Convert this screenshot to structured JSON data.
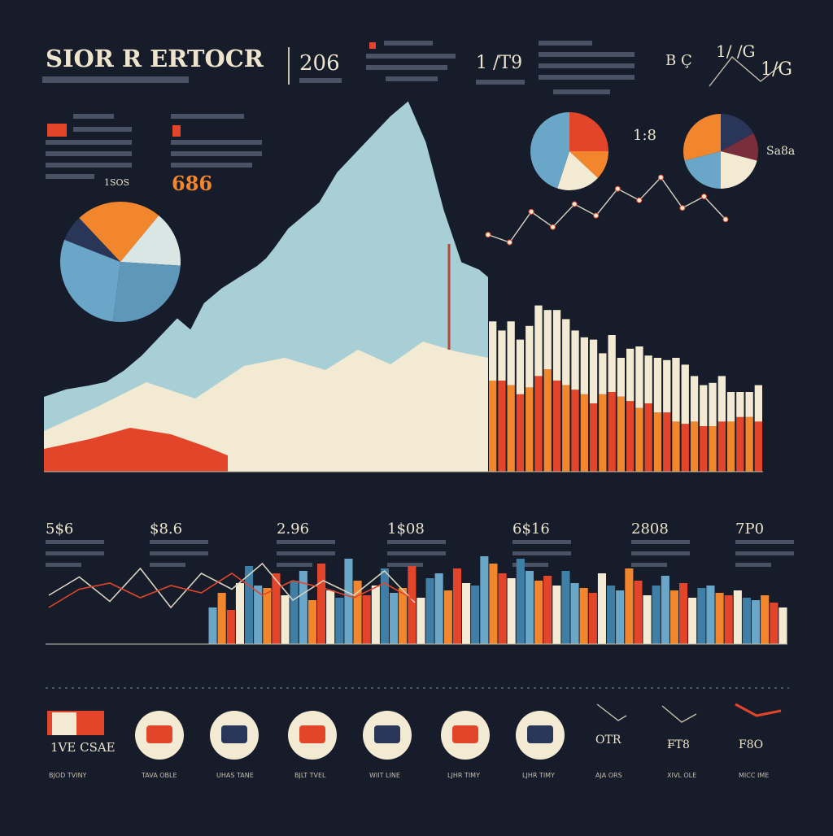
{
  "title": "SIOR R ERTOCR",
  "header_stats": [
    {
      "value": "206"
    },
    {
      "value": "1 /T9"
    },
    {
      "value": "B Ç"
    },
    {
      "value": "1/ /G"
    }
  ],
  "stat_labels": {
    "big_orange": "686",
    "right_pie_label": "Sa8a",
    "left_pie_caption": "1SOS",
    "right_pie_caption": "1:8"
  },
  "mid_stats": [
    {
      "value": "5$6"
    },
    {
      "value": "$8.6"
    },
    {
      "value": "2.96"
    },
    {
      "value": "1$08"
    },
    {
      "value": "6$16"
    },
    {
      "value": "2808"
    },
    {
      "value": "7P0"
    }
  ],
  "bottom_labels": [
    {
      "big": "1VE CSAE",
      "caption": "BJOD TVINY"
    },
    {
      "big": "",
      "caption": "TAVA OBLE"
    },
    {
      "big": "",
      "caption": "UHAS TANE"
    },
    {
      "big": "",
      "caption": "BJLT TVEL"
    },
    {
      "big": "",
      "caption": "WIIT LINE"
    },
    {
      "big": "",
      "caption": "LJHR TIMY"
    },
    {
      "big": "OTR",
      "caption": "AJA ORS"
    },
    {
      "big": "F̶T8",
      "caption": "XIVL OLE"
    },
    {
      "big": "F8O",
      "caption": "MICC IME"
    }
  ],
  "colors": {
    "bg": "#161c2a",
    "blue": "#6aa6c8",
    "light_blue": "#a9cfd6",
    "orange": "#f2862d",
    "red": "#e3452b",
    "cream": "#f2ead2",
    "navy": "#2a3657",
    "maroon": "#7a2e3b"
  },
  "chart_data": [
    {
      "type": "pie",
      "name": "pie-left",
      "values": [
        11,
        15,
        26,
        29,
        7,
        12
      ],
      "colors": [
        "#f2862d",
        "#d9e6e4",
        "#5f97b8",
        "#6aa6c8",
        "#2a3657",
        "#f2862d"
      ]
    },
    {
      "type": "pie",
      "name": "pie-top-middle",
      "values": [
        25,
        12,
        18,
        45
      ],
      "colors": [
        "#e3452b",
        "#f2862d",
        "#f2ead2",
        "#6aa6c8"
      ]
    },
    {
      "type": "pie",
      "name": "pie-top-right",
      "values": [
        17,
        12,
        21,
        21,
        29
      ],
      "colors": [
        "#2a3657",
        "#7a2e3b",
        "#f2ead2",
        "#6aa6c8",
        "#f2862d"
      ]
    },
    {
      "type": "area",
      "name": "mountain-area",
      "x": [
        0,
        5,
        10,
        14,
        18,
        22,
        26,
        30,
        33,
        36,
        40,
        44,
        48,
        50,
        52,
        55,
        58,
        62,
        66,
        70,
        74,
        78,
        82,
        86,
        90,
        94,
        98,
        100
      ],
      "y": [
        20,
        22,
        23,
        24,
        27,
        31,
        36,
        41,
        38,
        45,
        49,
        52,
        55,
        57,
        60,
        65,
        68,
        72,
        80,
        85,
        90,
        95,
        99,
        88,
        70,
        56,
        54,
        52
      ],
      "ylim": [
        0,
        100
      ]
    },
    {
      "type": "bar",
      "name": "stacked-bars",
      "categories": [
        "1",
        "2",
        "3",
        "4",
        "5",
        "6",
        "7",
        "8",
        "9",
        "10",
        "11",
        "12",
        "13",
        "14",
        "15",
        "16",
        "17",
        "18",
        "19",
        "20",
        "21",
        "22",
        "23",
        "24",
        "25",
        "26",
        "27",
        "28",
        "29",
        "30"
      ],
      "series": [
        {
          "values": [
            40,
            40,
            38,
            34,
            37,
            42,
            45,
            40,
            38,
            36,
            34,
            30,
            34,
            35,
            33,
            31,
            28,
            30,
            26,
            26,
            22,
            21,
            22,
            20,
            20,
            22,
            22,
            24,
            24,
            22
          ]
        },
        {
          "values": [
            26,
            22,
            28,
            24,
            27,
            31,
            26,
            31,
            29,
            26,
            25,
            28,
            18,
            25,
            17,
            23,
            27,
            21,
            24,
            23,
            28,
            26,
            20,
            18,
            19,
            20,
            13,
            11,
            11,
            16
          ]
        }
      ],
      "ylim": [
        0,
        100
      ]
    },
    {
      "type": "line",
      "name": "overlay-line",
      "x": [
        0,
        1,
        2,
        3,
        4,
        5,
        6,
        7,
        8,
        9,
        10,
        11
      ],
      "y": [
        62,
        60,
        68,
        64,
        70,
        67,
        74,
        71,
        77,
        69,
        72,
        66
      ],
      "ylim": [
        0,
        100
      ]
    },
    {
      "type": "bar",
      "name": "lower-bars",
      "categories": [
        "1",
        "2",
        "3",
        "4",
        "5",
        "6",
        "7",
        "8",
        "9",
        "10",
        "11",
        "12",
        "13",
        "14",
        "15",
        "16",
        "17",
        "18",
        "19",
        "20",
        "21",
        "22",
        "23",
        "24",
        "25",
        "26",
        "27",
        "28",
        "29",
        "30",
        "31",
        "32",
        "33",
        "34",
        "35",
        "36",
        "37",
        "38",
        "39",
        "40",
        "41",
        "42",
        "43",
        "44",
        "45",
        "46",
        "47",
        "48",
        "49",
        "50",
        "51",
        "52",
        "53",
        "54",
        "55",
        "56",
        "57",
        "58",
        "59",
        "60",
        "61",
        "62",
        "63",
        "64"
      ],
      "values": [
        30,
        42,
        28,
        50,
        64,
        48,
        46,
        58,
        40,
        52,
        60,
        36,
        66,
        44,
        38,
        70,
        52,
        40,
        48,
        62,
        42,
        46,
        64,
        38,
        54,
        58,
        44,
        62,
        50,
        48,
        72,
        66,
        58,
        54,
        70,
        60,
        52,
        56,
        48,
        60,
        50,
        46,
        42,
        58,
        48,
        44,
        62,
        52,
        40,
        48,
        56,
        44,
        50,
        38,
        46,
        48,
        42,
        40,
        44,
        38,
        36,
        40,
        34,
        30
      ],
      "ylim": [
        0,
        100
      ]
    },
    {
      "type": "line",
      "name": "lower-lines",
      "series": [
        {
          "values": [
            40,
            55,
            35,
            62,
            30,
            58,
            45,
            66,
            36,
            52,
            40,
            60,
            34
          ]
        },
        {
          "values": [
            30,
            45,
            50,
            38,
            48,
            42,
            58,
            40,
            52,
            46,
            38,
            50,
            36
          ]
        }
      ],
      "ylim": [
        0,
        100
      ]
    }
  ]
}
